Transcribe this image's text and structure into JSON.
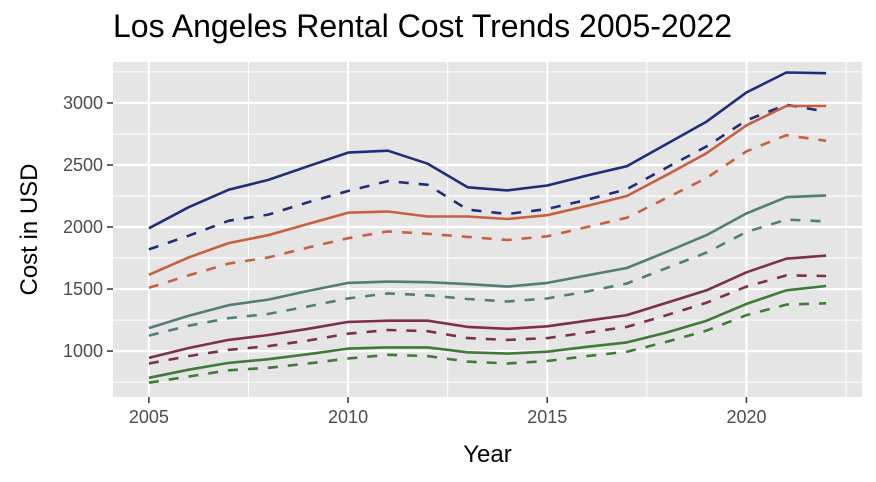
{
  "chart_data": {
    "type": "line",
    "title": "Los Angeles Rental Cost Trends 2005-2022",
    "xlabel": "Year",
    "ylabel": "Cost in USD",
    "xlim": [
      2004.1,
      2022.9
    ],
    "ylim": [
      630,
      3330
    ],
    "x_ticks": [
      2005,
      2010,
      2015,
      2020
    ],
    "y_ticks": [
      1000,
      1500,
      2000,
      2500,
      3000
    ],
    "grid": true,
    "legend": "none",
    "panel_background": "#E5E5E5",
    "x": [
      2005,
      2006,
      2007,
      2008,
      2009,
      2010,
      2011,
      2012,
      2013,
      2014,
      2015,
      2016,
      2017,
      2018,
      2019,
      2020,
      2021,
      2022
    ],
    "series": [
      {
        "color": "#1F2E7A",
        "linestyle": "solid",
        "values": [
          1990,
          2160,
          2300,
          2380,
          2490,
          2600,
          2615,
          2510,
          2320,
          2295,
          2335,
          2415,
          2490,
          2670,
          2850,
          3085,
          3245,
          3240
        ]
      },
      {
        "color": "#1F2E7A",
        "linestyle": "dashed",
        "values": [
          1820,
          1930,
          2050,
          2100,
          2200,
          2290,
          2370,
          2340,
          2140,
          2105,
          2145,
          2220,
          2305,
          2480,
          2650,
          2860,
          2985,
          2930
        ]
      },
      {
        "color": "#C8603F",
        "linestyle": "solid",
        "values": [
          1615,
          1755,
          1870,
          1935,
          2025,
          2115,
          2125,
          2085,
          2085,
          2065,
          2095,
          2170,
          2250,
          2420,
          2595,
          2820,
          2975,
          2975
        ]
      },
      {
        "color": "#C8603F",
        "linestyle": "dashed",
        "values": [
          1510,
          1610,
          1705,
          1755,
          1835,
          1910,
          1965,
          1945,
          1920,
          1895,
          1925,
          2000,
          2075,
          2235,
          2395,
          2610,
          2740,
          2695
        ]
      },
      {
        "color": "#527D79",
        "linestyle": "solid",
        "values": [
          1185,
          1285,
          1370,
          1415,
          1485,
          1550,
          1560,
          1555,
          1540,
          1520,
          1550,
          1610,
          1670,
          1800,
          1935,
          2110,
          2240,
          2255
        ]
      },
      {
        "color": "#527D79",
        "linestyle": "dashed",
        "values": [
          1125,
          1205,
          1265,
          1300,
          1360,
          1425,
          1465,
          1450,
          1420,
          1400,
          1425,
          1480,
          1545,
          1670,
          1795,
          1960,
          2060,
          2045
        ]
      },
      {
        "color": "#7E2F49",
        "linestyle": "solid",
        "values": [
          945,
          1025,
          1090,
          1130,
          1180,
          1235,
          1245,
          1245,
          1195,
          1180,
          1200,
          1245,
          1290,
          1390,
          1490,
          1635,
          1745,
          1770
        ]
      },
      {
        "color": "#7E2F49",
        "linestyle": "dashed",
        "values": [
          900,
          960,
          1010,
          1040,
          1085,
          1140,
          1170,
          1160,
          1105,
          1090,
          1105,
          1150,
          1195,
          1290,
          1390,
          1520,
          1610,
          1605
        ]
      },
      {
        "color": "#3F7A37",
        "linestyle": "solid",
        "values": [
          785,
          850,
          905,
          935,
          975,
          1020,
          1030,
          1030,
          990,
          980,
          995,
          1035,
          1070,
          1150,
          1245,
          1380,
          1490,
          1525
        ]
      },
      {
        "color": "#3F7A37",
        "linestyle": "dashed",
        "values": [
          745,
          795,
          845,
          865,
          900,
          940,
          970,
          960,
          915,
          900,
          920,
          960,
          995,
          1075,
          1165,
          1290,
          1375,
          1385
        ]
      }
    ]
  }
}
